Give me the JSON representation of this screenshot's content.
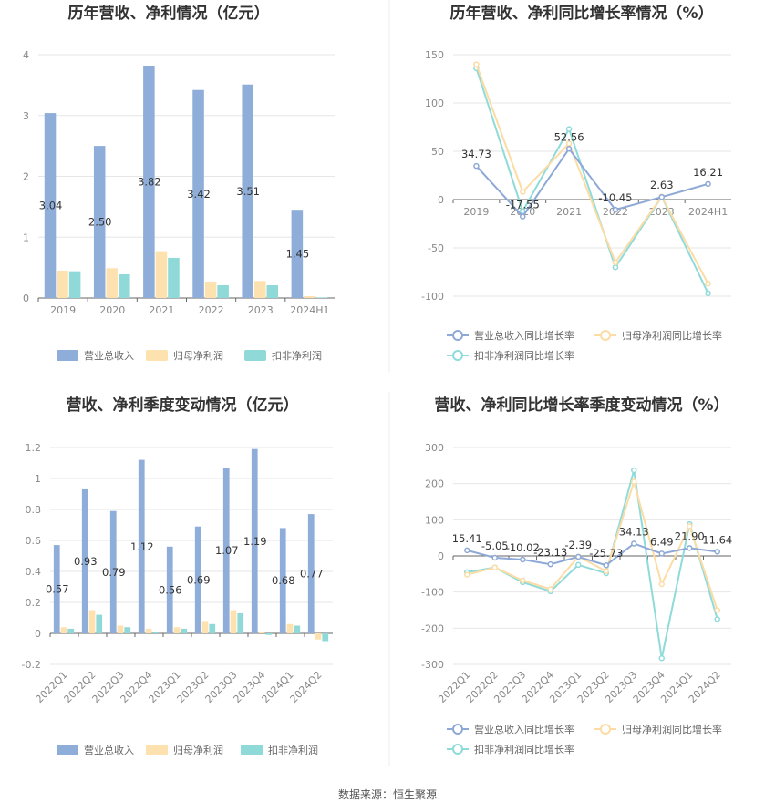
{
  "colors": {
    "revenue": "#8fadd9",
    "net_profit": "#fde2b0",
    "deducted_profit": "#8fdad8",
    "revenue_line": "#8ea9d6",
    "net_line": "#fcdca4",
    "deducted_line": "#8fdbd9",
    "grid": "#e6e6e6",
    "axis": "#666666"
  },
  "source": "数据来源：恒生聚源",
  "chart_data": [
    {
      "id": "annual_value",
      "type": "bar",
      "title": "历年营收、净利情况（亿元）",
      "categories": [
        "2019",
        "2020",
        "2021",
        "2022",
        "2023",
        "2024H1"
      ],
      "ylim": [
        0,
        4
      ],
      "yticks": [
        0,
        1,
        2,
        3,
        4
      ],
      "series": [
        {
          "name": "营业总收入",
          "values": [
            3.04,
            2.5,
            3.82,
            3.42,
            3.51,
            1.45
          ],
          "labels": [
            "3.04",
            "2.50",
            "3.82",
            "3.42",
            "3.51",
            "1.45"
          ]
        },
        {
          "name": "归母净利润",
          "values": [
            0.45,
            0.49,
            0.77,
            0.27,
            0.28,
            0.03
          ]
        },
        {
          "name": "扣非净利润",
          "values": [
            0.44,
            0.39,
            0.66,
            0.21,
            0.21,
            0.01
          ]
        }
      ],
      "legend": "bottom"
    },
    {
      "id": "annual_growth",
      "type": "line",
      "title": "历年营收、净利同比增长率情况（%）",
      "categories": [
        "2019",
        "2020",
        "2021",
        "2022",
        "2023",
        "2024H1"
      ],
      "ylim": [
        -100,
        150
      ],
      "yticks": [
        -100,
        -50,
        0,
        50,
        100,
        150
      ],
      "series": [
        {
          "name": "营业总收入同比增长率",
          "values": [
            34.73,
            -17.55,
            52.56,
            -10.45,
            2.63,
            16.21
          ],
          "labels": [
            "34.73",
            "-17.55",
            "52.56",
            "-10.45",
            "2.63",
            "16.21"
          ]
        },
        {
          "name": "归母净利润同比增长率",
          "values": [
            140,
            8,
            58,
            -65,
            3,
            -87
          ]
        },
        {
          "name": "扣非净利润同比增长率",
          "values": [
            136,
            -12,
            73,
            -70,
            3,
            -97
          ]
        }
      ],
      "legend": "bottom"
    },
    {
      "id": "quarter_value",
      "type": "bar",
      "title": "营收、净利季度变动情况（亿元）",
      "categories": [
        "2022Q1",
        "2022Q2",
        "2022Q3",
        "2022Q4",
        "2023Q1",
        "2023Q2",
        "2023Q3",
        "2023Q4",
        "2024Q1",
        "2024Q2"
      ],
      "ylim": [
        -0.2,
        1.2
      ],
      "yticks": [
        -0.2,
        0,
        0.2,
        0.4,
        0.6,
        0.8,
        1,
        1.2
      ],
      "series": [
        {
          "name": "营业总收入",
          "values": [
            0.57,
            0.93,
            0.79,
            1.12,
            0.56,
            0.69,
            1.07,
            1.19,
            0.68,
            0.77
          ],
          "labels": [
            "0.57",
            "0.93",
            "0.79",
            "1.12",
            "0.56",
            "0.69",
            "1.07",
            "1.19",
            "0.68",
            "0.77"
          ]
        },
        {
          "name": "归母净利润",
          "values": [
            0.04,
            0.15,
            0.05,
            0.03,
            0.04,
            0.08,
            0.15,
            0.01,
            0.06,
            -0.04
          ]
        },
        {
          "name": "扣非净利润",
          "values": [
            0.03,
            0.12,
            0.04,
            0.01,
            0.03,
            0.06,
            0.13,
            -0.01,
            0.05,
            -0.05
          ]
        }
      ],
      "legend": "bottom"
    },
    {
      "id": "quarter_growth",
      "type": "line",
      "title": "营收、净利同比增长率季度变动情况（%）",
      "categories": [
        "2022Q1",
        "2022Q2",
        "2022Q3",
        "2022Q4",
        "2023Q1",
        "2023Q2",
        "2023Q3",
        "2023Q4",
        "2024Q1",
        "2024Q2"
      ],
      "ylim": [
        -300,
        300
      ],
      "yticks": [
        -300,
        -200,
        -100,
        0,
        100,
        200,
        300
      ],
      "series": [
        {
          "name": "营业总收入同比增长率",
          "values": [
            15.41,
            -5.05,
            -10.02,
            -23.13,
            -2.39,
            -25.73,
            34.13,
            6.49,
            21.9,
            11.64
          ],
          "labels": [
            "15.41",
            "-5.05",
            "-10.02",
            "-23.13",
            "-2.39",
            "-25.73",
            "34.13",
            "6.49",
            "21.90",
            "11.64"
          ]
        },
        {
          "name": "归母净利润同比增长率",
          "values": [
            -52,
            -32,
            -68,
            -92,
            -2,
            -42,
            205,
            -78,
            82,
            -150
          ]
        },
        {
          "name": "扣非净利润同比增长率",
          "values": [
            -45,
            -32,
            -73,
            -98,
            -25,
            -48,
            237,
            -283,
            88,
            -175
          ]
        }
      ],
      "legend": "bottom"
    }
  ]
}
